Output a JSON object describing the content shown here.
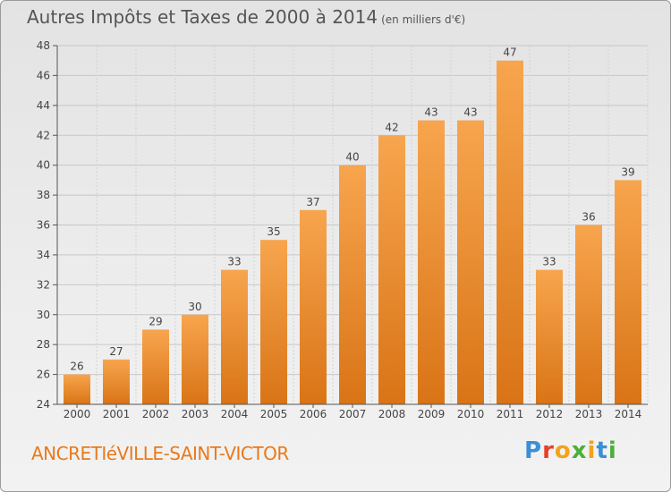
{
  "chart_data": {
    "type": "bar",
    "title": "Autres Impôts et Taxes de 2000 à 2014",
    "subtitle": "(en milliers d'€)",
    "categories": [
      "2000",
      "2001",
      "2002",
      "2003",
      "2004",
      "2005",
      "2006",
      "2007",
      "2008",
      "2009",
      "2010",
      "2011",
      "2012",
      "2013",
      "2014"
    ],
    "values": [
      26,
      27,
      29,
      30,
      33,
      35,
      37,
      40,
      42,
      43,
      43,
      47,
      33,
      36,
      39
    ],
    "ylim": [
      24,
      48
    ],
    "yticks": [
      "24",
      "26",
      "28",
      "30",
      "32",
      "34",
      "36",
      "38",
      "40",
      "42",
      "44",
      "46",
      "48"
    ],
    "xlabel": "",
    "ylabel": "",
    "grid": true,
    "bar_color": "#f0922e"
  },
  "footer": {
    "commune": "ANCRETIéVILLE-SAINT-VICTOR",
    "logo": [
      "P",
      "r",
      "o",
      "x",
      "i",
      "t",
      "i"
    ],
    "logo_colors": [
      "#3b8fd6",
      "#e8402c",
      "#f3a21b",
      "#4caf3a",
      "#f3a21b",
      "#3b8fd6",
      "#4caf3a"
    ]
  }
}
